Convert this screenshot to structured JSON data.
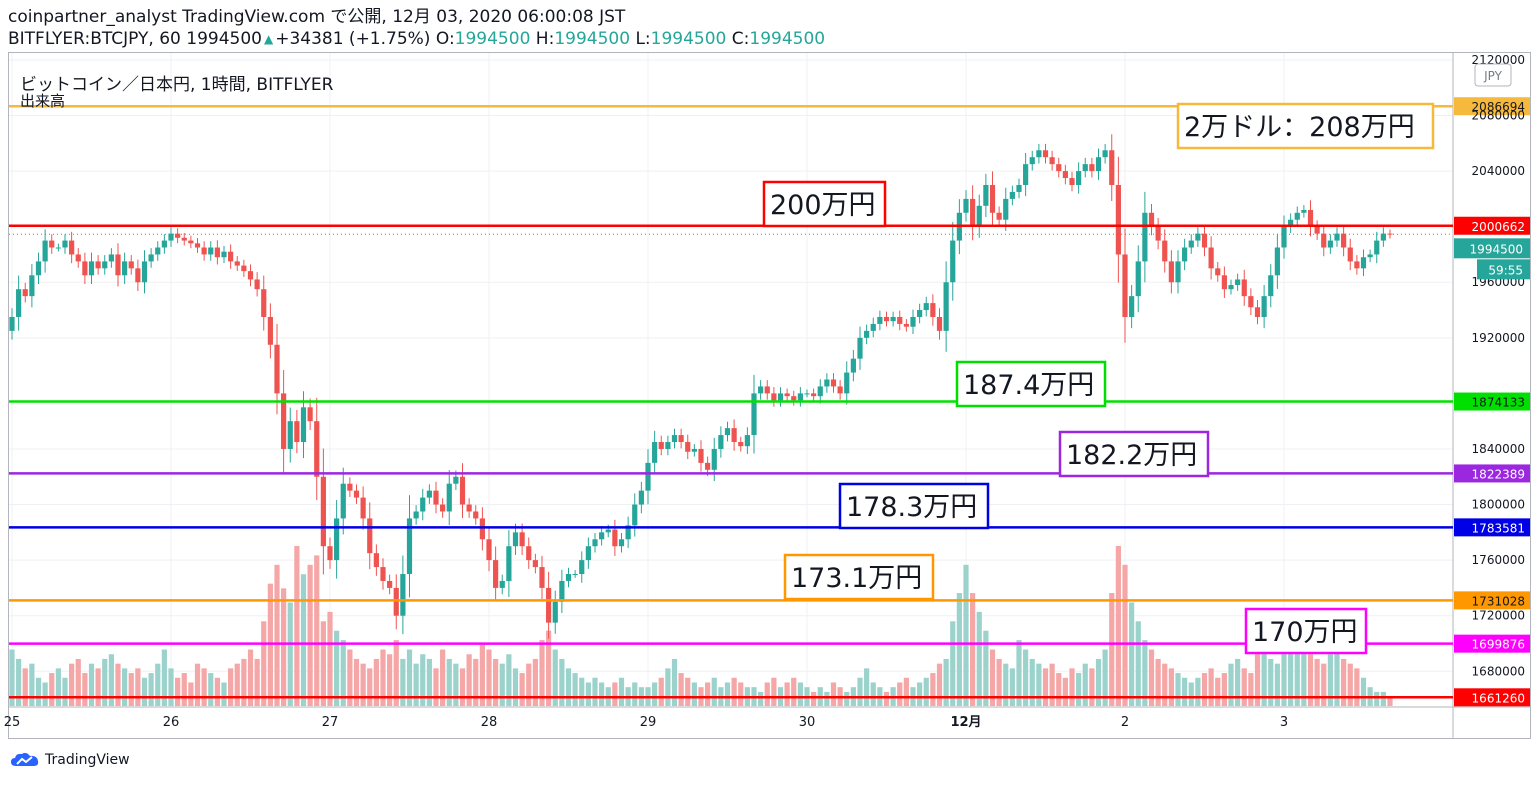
{
  "header": {
    "line1": "coinpartner_analyst TradingView.com で公開, 12月 03, 2020 06:00:08 JST",
    "symbol": "BITFLYER:BTCJPY, 60",
    "last": "1994500",
    "change": "+34381 (+1.75%)",
    "o_label": "O:",
    "o": "1994500",
    "h_label": "H:",
    "h": "1994500",
    "l_label": "L:",
    "l": "1994500",
    "c_label": "C:",
    "c": "1994500"
  },
  "legend": {
    "title": "ビットコイン／日本円, 1時間, BITFLYER",
    "volume": "出来高"
  },
  "currency_badge": "JPY",
  "footer": {
    "brand": "TradingView"
  },
  "colors": {
    "up": "#26a69a",
    "down": "#ef5350",
    "vol_up": "#9bd3cc",
    "vol_down": "#f5a6a6",
    "grid": "#eef0f3"
  },
  "chart_data": {
    "type": "candlestick",
    "ylim": [
      1655000,
      2125000
    ],
    "y_ticks": [
      "2120000",
      "2080000",
      "2040000",
      "1960000",
      "1920000",
      "1840000",
      "1800000",
      "1760000",
      "1720000",
      "1680000"
    ],
    "x_ticks": [
      "25",
      "26",
      "27",
      "28",
      "29",
      "30",
      "12月",
      "2",
      "3"
    ],
    "x_tick_positions": [
      0,
      24,
      48,
      72,
      96,
      120,
      144,
      168,
      192
    ],
    "last_price_label": "1994500",
    "countdown_label": "59:55",
    "levels": [
      {
        "value": 2086694,
        "label": "2086694",
        "color": "#f6b93b",
        "note": "2万ドル：208万円"
      },
      {
        "value": 2000662,
        "label": "2000662",
        "color": "#ff0000",
        "note": "200万円"
      },
      {
        "value": 1874133,
        "label": "1874133",
        "color": "#00e000",
        "note": "187.4万円"
      },
      {
        "value": 1822389,
        "label": "1822389",
        "color": "#9c27e0",
        "note": "182.2万円"
      },
      {
        "value": 1783581,
        "label": "1783581",
        "color": "#0000e6",
        "note": "178.3万円"
      },
      {
        "value": 1731028,
        "label": "1731028",
        "color": "#ff9800",
        "note": "173.1万円"
      },
      {
        "value": 1699876,
        "label": "1699876",
        "color": "#ff00ff",
        "note": "170万円"
      },
      {
        "value": 1661260,
        "label": "1661260",
        "color": "#ff0000",
        "note": ""
      }
    ],
    "closes": [
      1935000,
      1955000,
      1950000,
      1965000,
      1975000,
      1990000,
      1985000,
      1985000,
      1990000,
      1980000,
      1975000,
      1965000,
      1975000,
      1970000,
      1975000,
      1980000,
      1965000,
      1975000,
      1970000,
      1960000,
      1975000,
      1980000,
      1985000,
      1990000,
      1995000,
      1992000,
      1990000,
      1988000,
      1985000,
      1980000,
      1985000,
      1978000,
      1982000,
      1975000,
      1972000,
      1968000,
      1962000,
      1955000,
      1935000,
      1915000,
      1880000,
      1840000,
      1860000,
      1845000,
      1870000,
      1860000,
      1820000,
      1770000,
      1760000,
      1790000,
      1815000,
      1810000,
      1805000,
      1790000,
      1765000,
      1755000,
      1745000,
      1740000,
      1720000,
      1750000,
      1790000,
      1795000,
      1805000,
      1810000,
      1800000,
      1795000,
      1815000,
      1820000,
      1800000,
      1795000,
      1790000,
      1775000,
      1760000,
      1740000,
      1745000,
      1770000,
      1780000,
      1770000,
      1760000,
      1755000,
      1740000,
      1715000,
      1730000,
      1745000,
      1750000,
      1750000,
      1760000,
      1770000,
      1775000,
      1780000,
      1782000,
      1770000,
      1775000,
      1785000,
      1800000,
      1810000,
      1830000,
      1845000,
      1840000,
      1845000,
      1850000,
      1845000,
      1838000,
      1840000,
      1830000,
      1825000,
      1840000,
      1850000,
      1855000,
      1845000,
      1842000,
      1850000,
      1880000,
      1885000,
      1880000,
      1875000,
      1880000,
      1878000,
      1875000,
      1880000,
      1880000,
      1878000,
      1885000,
      1890000,
      1885000,
      1880000,
      1895000,
      1905000,
      1920000,
      1925000,
      1930000,
      1935000,
      1932000,
      1935000,
      1930000,
      1928000,
      1935000,
      1940000,
      1945000,
      1935000,
      1925000,
      1960000,
      1990000,
      2010000,
      2020000,
      2000000,
      2015000,
      2030000,
      2010000,
      2005000,
      2020000,
      2025000,
      2030000,
      2045000,
      2050000,
      2055000,
      2050000,
      2045000,
      2040000,
      2035000,
      2030000,
      2040000,
      2045000,
      2040000,
      2050000,
      2055000,
      2030000,
      1980000,
      1935000,
      1950000,
      1975000,
      2010000,
      2000000,
      1990000,
      1975000,
      1960000,
      1975000,
      1985000,
      1990000,
      1995000,
      1985000,
      1970000,
      1965000,
      1955000,
      1958000,
      1962000,
      1950000,
      1942000,
      1935000,
      1950000,
      1965000,
      1985000,
      2000000,
      2005000,
      2010000,
      2012000,
      2000000,
      1995000,
      1985000,
      1990000,
      1995000,
      1985000,
      1975000,
      1970000,
      1978000,
      1980000,
      1990000,
      1995000,
      1994500
    ],
    "volumes": [
      12,
      10,
      8,
      9,
      6,
      5,
      7,
      8,
      6,
      9,
      10,
      7,
      9,
      8,
      10,
      11,
      9,
      8,
      7,
      8,
      6,
      7,
      9,
      12,
      8,
      6,
      7,
      5,
      9,
      8,
      7,
      6,
      5,
      8,
      9,
      10,
      12,
      10,
      18,
      26,
      30,
      25,
      22,
      34,
      28,
      30,
      32,
      18,
      20,
      16,
      14,
      12,
      10,
      9,
      8,
      10,
      12,
      11,
      14,
      10,
      12,
      9,
      11,
      10,
      8,
      12,
      10,
      9,
      8,
      11,
      10,
      13,
      12,
      10,
      9,
      11,
      8,
      7,
      9,
      10,
      14,
      16,
      12,
      10,
      8,
      7,
      6,
      5,
      6,
      5,
      4,
      5,
      6,
      4,
      5,
      4,
      4,
      5,
      6,
      8,
      10,
      7,
      6,
      5,
      4,
      5,
      6,
      4,
      5,
      6,
      5,
      4,
      4,
      3,
      5,
      6,
      4,
      5,
      6,
      5,
      4,
      3,
      4,
      3,
      5,
      4,
      3,
      4,
      6,
      8,
      5,
      4,
      3,
      4,
      5,
      6,
      4,
      5,
      6,
      7,
      9,
      10,
      18,
      24,
      30,
      24,
      20,
      16,
      12,
      10,
      9,
      8,
      14,
      12,
      10,
      9,
      8,
      9,
      7,
      6,
      8,
      7,
      9,
      8,
      10,
      12,
      24,
      34,
      30,
      22,
      18,
      14,
      12,
      10,
      9,
      8,
      7,
      6,
      5,
      6,
      7,
      8,
      6,
      7,
      9,
      10,
      8,
      7,
      12,
      14,
      10,
      9,
      12,
      15,
      16,
      12,
      11,
      10,
      9,
      11,
      12,
      10,
      9,
      8,
      6,
      4,
      3,
      3,
      2
    ]
  }
}
